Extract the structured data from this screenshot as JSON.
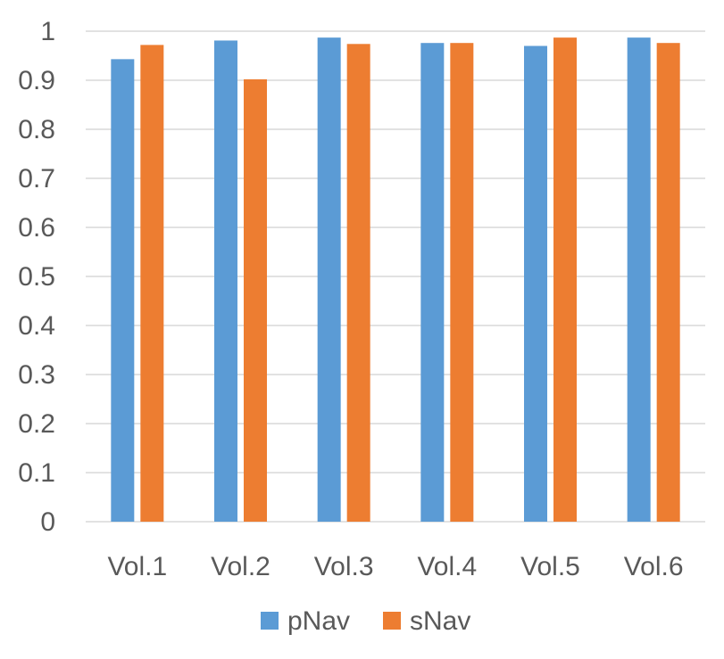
{
  "chart_data": {
    "type": "bar",
    "title": "",
    "xlabel": "",
    "ylabel": "",
    "categories": [
      "Vol.1",
      "Vol.2",
      "Vol.3",
      "Vol.4",
      "Vol.5",
      "Vol.6"
    ],
    "series": [
      {
        "name": "pNav",
        "color": "#5b9bd5",
        "values": [
          0.943,
          0.981,
          0.987,
          0.976,
          0.97,
          0.987
        ]
      },
      {
        "name": "sNav",
        "color": "#ed7d31",
        "values": [
          0.972,
          0.902,
          0.974,
          0.976,
          0.987,
          0.976
        ]
      }
    ],
    "ylim": [
      0,
      1
    ],
    "yticks": [
      "0",
      "0.1",
      "0.2",
      "0.3",
      "0.4",
      "0.5",
      "0.6",
      "0.7",
      "0.8",
      "0.9",
      "1"
    ],
    "grid": true,
    "legend_position": "bottom-center"
  }
}
